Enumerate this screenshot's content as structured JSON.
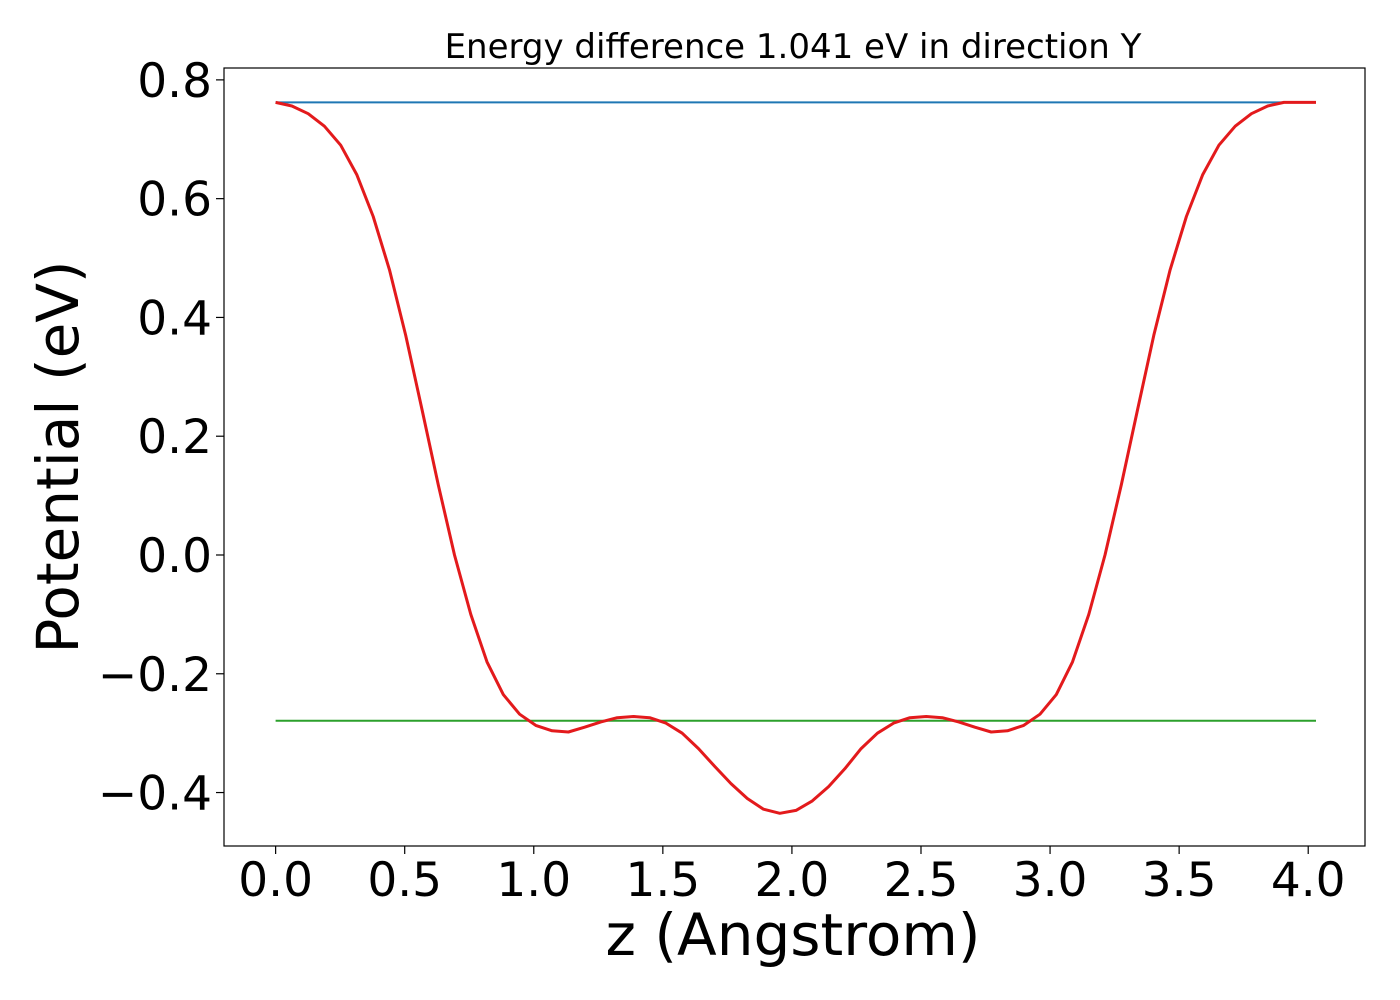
{
  "chart_data": {
    "type": "line",
    "title": "Energy difference 1.041 eV in direction Y",
    "xlabel": "z (Angstrom)",
    "ylabel": "Potential (eV)",
    "xlim": [
      -0.2,
      4.22
    ],
    "ylim": [
      -0.49,
      0.82
    ],
    "xticks": [
      0.0,
      0.5,
      1.0,
      1.5,
      2.0,
      2.5,
      3.0,
      3.5,
      4.0
    ],
    "xtick_labels": [
      "0.0",
      "0.5",
      "1.0",
      "1.5",
      "2.0",
      "2.5",
      "3.0",
      "3.5",
      "4.0"
    ],
    "yticks": [
      -0.4,
      -0.2,
      0.0,
      0.2,
      0.4,
      0.6,
      0.8
    ],
    "ytick_labels": [
      "−0.4",
      "−0.2",
      "0.0",
      "0.2",
      "0.4",
      "0.6",
      "0.8"
    ],
    "grid": false,
    "series": [
      {
        "color": "#1f77b4",
        "x": [
          0.0,
          4.03
        ],
        "y": [
          0.762,
          0.762
        ]
      },
      {
        "color": "#2ca02c",
        "x": [
          0.0,
          4.03
        ],
        "y": [
          -0.279,
          -0.279
        ]
      },
      {
        "color": "#e31a1c",
        "x": [
          0.0,
          0.063,
          0.126,
          0.189,
          0.252,
          0.315,
          0.378,
          0.441,
          0.504,
          0.567,
          0.63,
          0.693,
          0.756,
          0.819,
          0.882,
          0.945,
          1.008,
          1.071,
          1.134,
          1.197,
          1.26,
          1.323,
          1.386,
          1.449,
          1.512,
          1.575,
          1.638,
          1.701,
          1.764,
          1.827,
          1.89,
          1.953,
          2.016,
          2.079,
          2.142,
          2.205,
          2.268,
          2.331,
          2.394,
          2.457,
          2.52,
          2.583,
          2.646,
          2.709,
          2.772,
          2.835,
          2.898,
          2.961,
          3.024,
          3.087,
          3.15,
          3.213,
          3.276,
          3.339,
          3.402,
          3.465,
          3.528,
          3.591,
          3.654,
          3.717,
          3.78,
          3.843,
          3.906,
          3.969,
          4.03
        ],
        "y": [
          0.762,
          0.756,
          0.743,
          0.722,
          0.69,
          0.64,
          0.57,
          0.48,
          0.37,
          0.245,
          0.118,
          0.0,
          -0.1,
          -0.18,
          -0.235,
          -0.268,
          -0.287,
          -0.296,
          -0.298,
          -0.29,
          -0.281,
          -0.274,
          -0.272,
          -0.274,
          -0.283,
          -0.3,
          -0.326,
          -0.356,
          -0.385,
          -0.41,
          -0.428,
          -0.435,
          -0.43,
          -0.414,
          -0.39,
          -0.36,
          -0.326,
          -0.3,
          -0.283,
          -0.274,
          -0.272,
          -0.274,
          -0.281,
          -0.29,
          -0.298,
          -0.296,
          -0.287,
          -0.268,
          -0.235,
          -0.18,
          -0.1,
          0.0,
          0.118,
          0.245,
          0.37,
          0.48,
          0.57,
          0.64,
          0.69,
          0.722,
          0.743,
          0.756,
          0.762,
          0.762,
          0.762
        ]
      }
    ]
  }
}
